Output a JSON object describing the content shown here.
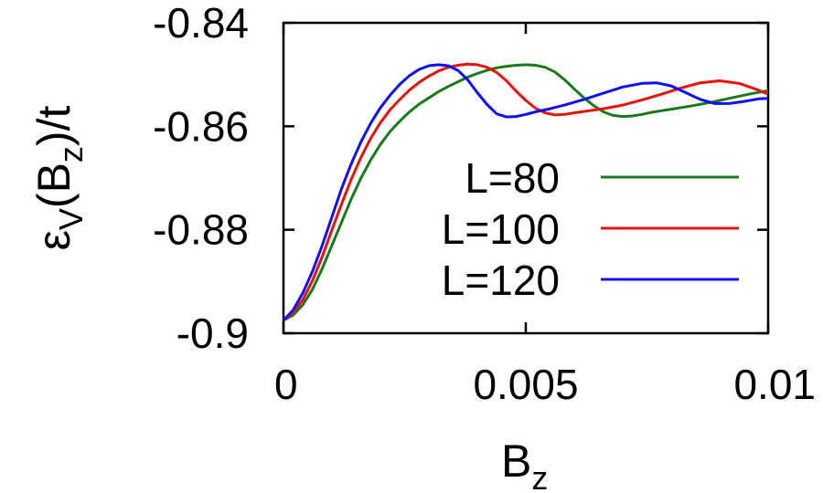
{
  "chart_data": {
    "type": "line",
    "title": "",
    "xlabel": {
      "main": "B",
      "sub": "z"
    },
    "ylabel": {
      "a": "ε",
      "a_sub": "V",
      "b": "(B",
      "b_sub": "z",
      "c": ")/t"
    },
    "xlim": [
      0,
      0.01
    ],
    "ylim": [
      -0.9,
      -0.84
    ],
    "xticks": [
      0,
      0.005,
      0.01
    ],
    "xtick_labels": [
      "0",
      "0.005",
      "0.01"
    ],
    "yticks": [
      -0.9,
      -0.88,
      -0.86,
      -0.84
    ],
    "ytick_labels": [
      "-0.9",
      "-0.88",
      "-0.86",
      "-0.84"
    ],
    "grid": false,
    "legend_position": "right",
    "series": [
      {
        "name": "L=80",
        "color": "#1a7a1a",
        "x": [
          0,
          0.0002,
          0.0004,
          0.0006,
          0.0008,
          0.001,
          0.0012,
          0.0014,
          0.0016,
          0.0018,
          0.002,
          0.0022,
          0.0024,
          0.0026,
          0.0028,
          0.003,
          0.0032,
          0.0034,
          0.0036,
          0.0038,
          0.004,
          0.0042,
          0.0044,
          0.0046,
          0.0048,
          0.005,
          0.0052,
          0.0054,
          0.0056,
          0.0058,
          0.006,
          0.0062,
          0.0064,
          0.0066,
          0.0068,
          0.007,
          0.0072,
          0.0074,
          0.0076,
          0.0078,
          0.008,
          0.0084,
          0.0088,
          0.0092,
          0.0096,
          0.01
        ],
        "y": [
          -0.8975,
          -0.8965,
          -0.8945,
          -0.8915,
          -0.8875,
          -0.883,
          -0.8785,
          -0.874,
          -0.87,
          -0.8665,
          -0.8635,
          -0.861,
          -0.859,
          -0.8572,
          -0.8557,
          -0.8545,
          -0.8533,
          -0.8523,
          -0.8514,
          -0.8505,
          -0.8498,
          -0.8492,
          -0.8487,
          -0.8484,
          -0.8482,
          -0.8481,
          -0.8482,
          -0.8486,
          -0.8495,
          -0.851,
          -0.8528,
          -0.8545,
          -0.856,
          -0.8572,
          -0.8579,
          -0.8581,
          -0.858,
          -0.8577,
          -0.8573,
          -0.857,
          -0.8567,
          -0.8561,
          -0.8554,
          -0.8546,
          -0.8538,
          -0.8531
        ]
      },
      {
        "name": "L=100",
        "color": "#e8120c",
        "x": [
          0,
          0.0002,
          0.0004,
          0.0006,
          0.0008,
          0.001,
          0.0012,
          0.0014,
          0.0016,
          0.0018,
          0.002,
          0.0022,
          0.0024,
          0.0026,
          0.0028,
          0.003,
          0.0032,
          0.0034,
          0.0036,
          0.0038,
          0.004,
          0.0042,
          0.0044,
          0.0046,
          0.0048,
          0.005,
          0.0052,
          0.0054,
          0.0056,
          0.0058,
          0.006,
          0.0063,
          0.0066,
          0.007,
          0.0074,
          0.0078,
          0.0082,
          0.0086,
          0.009,
          0.0094,
          0.0098,
          0.01
        ],
        "y": [
          -0.8975,
          -0.896,
          -0.8935,
          -0.8898,
          -0.8852,
          -0.88,
          -0.875,
          -0.8702,
          -0.866,
          -0.8623,
          -0.8593,
          -0.8568,
          -0.8548,
          -0.853,
          -0.8515,
          -0.8503,
          -0.8493,
          -0.8486,
          -0.8482,
          -0.848,
          -0.8481,
          -0.8486,
          -0.8496,
          -0.8512,
          -0.8532,
          -0.855,
          -0.8565,
          -0.8574,
          -0.8578,
          -0.8577,
          -0.8574,
          -0.857,
          -0.8566,
          -0.8559,
          -0.8549,
          -0.8538,
          -0.8526,
          -0.8516,
          -0.8512,
          -0.8517,
          -0.853,
          -0.8538
        ]
      },
      {
        "name": "L=120",
        "color": "#1010f0",
        "x": [
          0,
          0.0002,
          0.0004,
          0.0006,
          0.0008,
          0.001,
          0.0012,
          0.0014,
          0.0016,
          0.0018,
          0.002,
          0.0022,
          0.0024,
          0.0026,
          0.0028,
          0.003,
          0.0032,
          0.0034,
          0.0036,
          0.0038,
          0.004,
          0.0042,
          0.0044,
          0.0046,
          0.0048,
          0.005,
          0.0052,
          0.0055,
          0.0058,
          0.0062,
          0.0066,
          0.007,
          0.0074,
          0.0077,
          0.008,
          0.0083,
          0.0086,
          0.0089,
          0.0092,
          0.0095,
          0.0098,
          0.01
        ],
        "y": [
          -0.8975,
          -0.8955,
          -0.8922,
          -0.888,
          -0.883,
          -0.8775,
          -0.872,
          -0.8672,
          -0.863,
          -0.8594,
          -0.8564,
          -0.854,
          -0.8519,
          -0.8502,
          -0.849,
          -0.8483,
          -0.8481,
          -0.8483,
          -0.8492,
          -0.851,
          -0.8535,
          -0.8558,
          -0.8576,
          -0.8582,
          -0.8581,
          -0.8577,
          -0.8572,
          -0.8566,
          -0.8559,
          -0.8548,
          -0.8536,
          -0.8524,
          -0.8517,
          -0.8516,
          -0.8522,
          -0.8535,
          -0.8548,
          -0.8556,
          -0.8556,
          -0.8552,
          -0.8547,
          -0.8546
        ]
      }
    ]
  }
}
